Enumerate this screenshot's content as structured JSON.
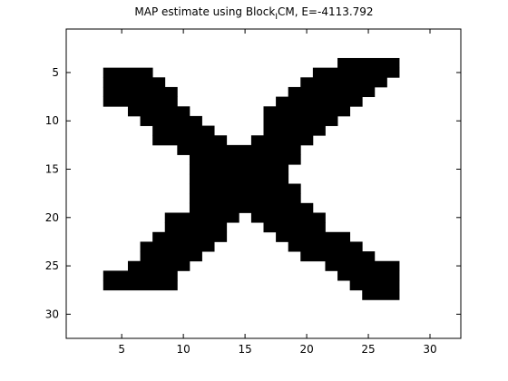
{
  "chart_data": {
    "type": "heatmap",
    "title": "MAP estimate using Block",
    "title_subscript": "I",
    "title_suffix": "CM, E=-4113.792",
    "xlim": [
      0.5,
      32.5
    ],
    "ylim": [
      0.5,
      32.5
    ],
    "y_direction": "reversed",
    "x_ticks": [
      5,
      10,
      15,
      20,
      25,
      30
    ],
    "y_ticks": [
      5,
      10,
      15,
      20,
      25,
      30
    ],
    "grid": false,
    "colormap": {
      "0": "#ffffff",
      "1": "#000000"
    },
    "rows_filled": [
      {
        "y": 4,
        "ranges": [
          [
            23,
            27
          ]
        ]
      },
      {
        "y": 5,
        "ranges": [
          [
            4,
            7
          ],
          [
            21,
            27
          ]
        ]
      },
      {
        "y": 6,
        "ranges": [
          [
            4,
            8
          ],
          [
            20,
            26
          ]
        ]
      },
      {
        "y": 7,
        "ranges": [
          [
            4,
            9
          ],
          [
            19,
            25
          ]
        ]
      },
      {
        "y": 8,
        "ranges": [
          [
            4,
            9
          ],
          [
            18,
            24
          ]
        ]
      },
      {
        "y": 9,
        "ranges": [
          [
            6,
            10
          ],
          [
            17,
            23
          ]
        ]
      },
      {
        "y": 10,
        "ranges": [
          [
            7,
            11
          ],
          [
            17,
            22
          ]
        ]
      },
      {
        "y": 11,
        "ranges": [
          [
            8,
            12
          ],
          [
            17,
            21
          ]
        ]
      },
      {
        "y": 12,
        "ranges": [
          [
            8,
            13
          ],
          [
            16,
            20
          ]
        ]
      },
      {
        "y": 13,
        "ranges": [
          [
            10,
            19
          ]
        ]
      },
      {
        "y": 14,
        "ranges": [
          [
            11,
            19
          ]
        ]
      },
      {
        "y": 15,
        "ranges": [
          [
            11,
            18
          ]
        ]
      },
      {
        "y": 16,
        "ranges": [
          [
            11,
            18
          ]
        ]
      },
      {
        "y": 17,
        "ranges": [
          [
            11,
            19
          ]
        ]
      },
      {
        "y": 18,
        "ranges": [
          [
            11,
            19
          ]
        ]
      },
      {
        "y": 19,
        "ranges": [
          [
            11,
            20
          ]
        ]
      },
      {
        "y": 20,
        "ranges": [
          [
            9,
            14
          ],
          [
            16,
            21
          ]
        ]
      },
      {
        "y": 21,
        "ranges": [
          [
            9,
            13
          ],
          [
            17,
            21
          ]
        ]
      },
      {
        "y": 22,
        "ranges": [
          [
            8,
            13
          ],
          [
            18,
            23
          ]
        ]
      },
      {
        "y": 23,
        "ranges": [
          [
            7,
            12
          ],
          [
            19,
            24
          ]
        ]
      },
      {
        "y": 24,
        "ranges": [
          [
            7,
            11
          ],
          [
            20,
            25
          ]
        ]
      },
      {
        "y": 25,
        "ranges": [
          [
            6,
            10
          ],
          [
            22,
            27
          ]
        ]
      },
      {
        "y": 26,
        "ranges": [
          [
            4,
            9
          ],
          [
            23,
            27
          ]
        ]
      },
      {
        "y": 27,
        "ranges": [
          [
            4,
            9
          ],
          [
            24,
            27
          ]
        ]
      },
      {
        "y": 28,
        "ranges": [
          [
            25,
            27
          ]
        ]
      }
    ]
  }
}
